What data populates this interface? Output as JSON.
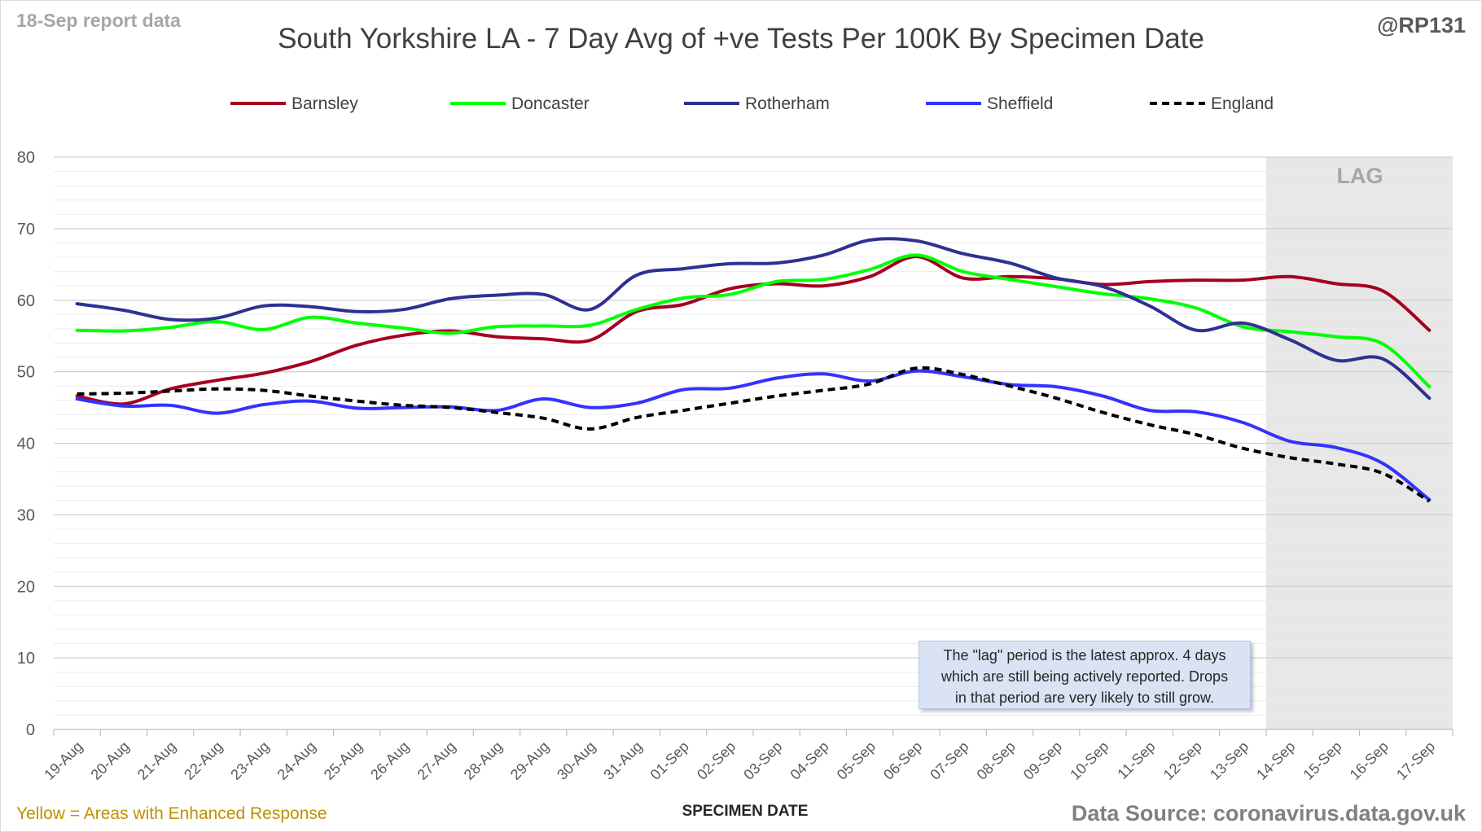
{
  "header": {
    "report_date": "18-Sep report data",
    "handle": "@RP131",
    "title": "South Yorkshire LA - 7 Day Avg of +ve Tests Per 100K By Specimen Date"
  },
  "footer": {
    "enhanced_note": "Yellow = Areas with Enhanced Response",
    "source": "Data Source: coronavirus.data.gov.uk"
  },
  "annotation": {
    "lines": [
      "The \"lag\" period is the latest approx. 4 days",
      "which are still being actively reported. Drops",
      "in that period are very likely to still grow."
    ]
  },
  "chart_data": {
    "type": "line",
    "title": "South Yorkshire LA - 7 Day Avg of +ve Tests Per 100K By Specimen Date",
    "xlabel": "SPECIMEN DATE",
    "ylabel": "",
    "ylim": [
      0,
      80
    ],
    "yticks": [
      0,
      10,
      20,
      30,
      40,
      50,
      60,
      70,
      80
    ],
    "grid": true,
    "legend_position": "top",
    "lag_label": "LAG",
    "lag_start": "14-Sep",
    "lag_end": "17-Sep",
    "x": [
      "19-Aug",
      "20-Aug",
      "21-Aug",
      "22-Aug",
      "23-Aug",
      "24-Aug",
      "25-Aug",
      "26-Aug",
      "27-Aug",
      "28-Aug",
      "29-Aug",
      "30-Aug",
      "31-Aug",
      "01-Sep",
      "02-Sep",
      "03-Sep",
      "04-Sep",
      "05-Sep",
      "06-Sep",
      "07-Sep",
      "08-Sep",
      "09-Sep",
      "10-Sep",
      "11-Sep",
      "12-Sep",
      "13-Sep",
      "14-Sep",
      "15-Sep",
      "16-Sep",
      "17-Sep"
    ],
    "series": [
      {
        "name": "Barnsley",
        "color": "#a50021",
        "dashed": false,
        "values": [
          46.6,
          45.5,
          47.6,
          48.8,
          49.8,
          51.4,
          53.7,
          55.1,
          55.7,
          54.9,
          54.6,
          54.4,
          58.4,
          59.4,
          61.6,
          62.3,
          62.0,
          63.3,
          66.1,
          63.1,
          63.3,
          63.0,
          62.2,
          62.6,
          62.8,
          62.8,
          63.3,
          62.3,
          61.3,
          55.8
        ]
      },
      {
        "name": "Doncaster",
        "color": "#00ff00",
        "dashed": false,
        "values": [
          55.8,
          55.7,
          56.2,
          57.0,
          55.9,
          57.6,
          56.8,
          56.1,
          55.4,
          56.3,
          56.4,
          56.5,
          58.7,
          60.3,
          60.8,
          62.6,
          62.9,
          64.3,
          66.3,
          64.0,
          62.9,
          61.9,
          60.9,
          60.2,
          58.9,
          56.3,
          55.6,
          54.9,
          53.9,
          47.9
        ]
      },
      {
        "name": "Rotherham",
        "color": "#2e3192",
        "dashed": false,
        "values": [
          59.5,
          58.6,
          57.3,
          57.5,
          59.2,
          59.1,
          58.4,
          58.7,
          60.2,
          60.7,
          60.8,
          58.7,
          63.5,
          64.4,
          65.1,
          65.2,
          66.3,
          68.4,
          68.3,
          66.5,
          65.2,
          63.1,
          61.9,
          59.2,
          55.8,
          56.8,
          54.5,
          51.6,
          51.8,
          46.3
        ]
      },
      {
        "name": "Sheffield",
        "color": "#3333ff",
        "dashed": false,
        "values": [
          46.2,
          45.2,
          45.3,
          44.2,
          45.4,
          45.9,
          44.9,
          45.0,
          45.1,
          44.6,
          46.2,
          45.0,
          45.6,
          47.5,
          47.7,
          49.1,
          49.7,
          48.7,
          50.1,
          49.3,
          48.2,
          47.9,
          46.6,
          44.6,
          44.4,
          42.9,
          40.3,
          39.4,
          37.2,
          32.1
        ]
      },
      {
        "name": "England",
        "color": "#000000",
        "dashed": true,
        "values": [
          46.9,
          47.0,
          47.3,
          47.6,
          47.4,
          46.6,
          45.9,
          45.3,
          45.0,
          44.3,
          43.5,
          42.0,
          43.6,
          44.6,
          45.6,
          46.6,
          47.4,
          48.3,
          50.5,
          49.6,
          48.0,
          46.3,
          44.3,
          42.6,
          41.2,
          39.3,
          38.0,
          37.1,
          35.8,
          31.9
        ]
      }
    ]
  }
}
